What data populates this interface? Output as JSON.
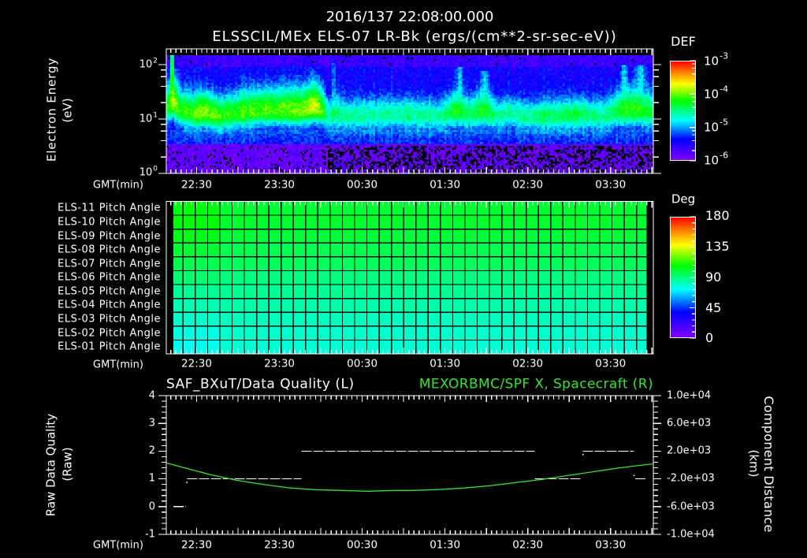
{
  "header": {
    "timestamp": "2016/137 22:08:00.000"
  },
  "colormap": [
    [
      0,
      "#7f00ff"
    ],
    [
      0.21,
      "#0000ff"
    ],
    [
      0.4,
      "#00ffff"
    ],
    [
      0.6,
      "#00ff00"
    ],
    [
      0.77,
      "#ffff00"
    ],
    [
      0.89,
      "#ff8000"
    ],
    [
      1,
      "#ff0000"
    ]
  ],
  "chart_data": [
    {
      "type": "heatmap",
      "title": "ELSSCIL/MEx ELS-07 LR-Bk  (ergs/(cm**2-sr-sec-eV))",
      "xlabel": "GMT(min)",
      "ylabel": "Electron Energy",
      "yunit": "(eV)",
      "x_range": [
        "22:08",
        "04:01"
      ],
      "x_ticks": [
        "22:30",
        "23:30",
        "00:30",
        "01:30",
        "02:30",
        "03:30"
      ],
      "yscale": "log",
      "ylim": [
        1,
        195
      ],
      "y_ticks": [
        {
          "base": "10",
          "exp": "2",
          "value": 100
        },
        {
          "base": "10",
          "exp": "1",
          "value": 10
        },
        {
          "base": "10",
          "exp": "0",
          "value": 1
        }
      ],
      "colorbar": {
        "label": "DEF",
        "log_range": [
          -6,
          -3
        ],
        "ticks": [
          {
            "base": "10",
            "exp": "-3"
          },
          {
            "base": "10",
            "exp": "-4"
          },
          {
            "base": "10",
            "exp": "-5"
          },
          {
            "base": "10",
            "exp": "-6"
          }
        ]
      },
      "spectrogram": {
        "energy_range_eV": [
          1,
          150
        ],
        "seed": 137,
        "background_log_def": {
          "top": -5.65,
          "upper": -5.45,
          "lower": -5.3,
          "bottom": -5.85
        },
        "sparse_after": "00:02",
        "black_fraction": [
          0.12,
          0.38
        ],
        "band_profile_columns": [
          "time",
          "peak_log_def",
          "center_log_energy",
          "upper_width"
        ],
        "band_profile": [
          [
            "22:08",
            -4.35,
            1.2,
            0.4
          ],
          [
            "22:13",
            -3.8,
            1.3,
            0.55
          ],
          [
            "22:18",
            -4.15,
            1.15,
            0.4
          ],
          [
            "22:27",
            -4.1,
            1.1,
            0.38
          ],
          [
            "22:36",
            -3.85,
            1.12,
            0.4
          ],
          [
            "22:47",
            -4.1,
            1.05,
            0.36
          ],
          [
            "22:59",
            -4.1,
            1.1,
            0.4
          ],
          [
            "23:16",
            -4.05,
            1.15,
            0.42
          ],
          [
            "23:33",
            -4.0,
            1.15,
            0.45
          ],
          [
            "23:47",
            -3.95,
            1.15,
            0.45
          ],
          [
            "23:56",
            -3.75,
            1.22,
            0.45
          ],
          [
            "00:02",
            -4.05,
            1.15,
            0.4
          ],
          [
            "00:06",
            -4.6,
            1.05,
            0.32
          ],
          [
            "00:10",
            -4.45,
            1.1,
            0.35
          ],
          [
            "00:19",
            -4.6,
            1.05,
            0.32
          ],
          [
            "00:53",
            -4.55,
            1.08,
            0.32
          ],
          [
            "01:27",
            -4.55,
            1.05,
            0.3
          ],
          [
            "01:39",
            -4.2,
            1.15,
            0.4
          ],
          [
            "01:47",
            -4.45,
            1.08,
            0.32
          ],
          [
            "01:59",
            -4.2,
            1.15,
            0.4
          ],
          [
            "02:09",
            -4.55,
            1.05,
            0.3
          ],
          [
            "02:16",
            -4.5,
            1.1,
            0.33
          ],
          [
            "02:25",
            -4.55,
            1.05,
            0.3
          ],
          [
            "02:47",
            -4.4,
            1.05,
            0.32
          ],
          [
            "03:07",
            -4.35,
            1.08,
            0.32
          ],
          [
            "03:25",
            -4.55,
            1.05,
            0.3
          ],
          [
            "03:39",
            -4.2,
            1.15,
            0.42
          ],
          [
            "03:50",
            -4.15,
            1.15,
            0.45
          ],
          [
            "04:01",
            -4.3,
            1.1,
            0.4
          ]
        ],
        "streaks_columns": [
          "from",
          "to",
          "log_def",
          "top_log_energy"
        ],
        "streaks": [
          [
            "22:11",
            "22:14",
            -3.8,
            2.17
          ],
          [
            "23:38",
            "23:41",
            -4.7,
            2.0
          ],
          [
            "00:07",
            "00:12",
            -4.75,
            2.1
          ],
          [
            "01:37",
            "01:44",
            -4.5,
            1.95
          ],
          [
            "01:55",
            "02:03",
            -4.5,
            1.9
          ],
          [
            "02:15",
            "02:18",
            -4.8,
            2.05
          ],
          [
            "03:37",
            "03:43",
            -4.45,
            2.0
          ],
          [
            "03:47",
            "03:57",
            -4.45,
            2.0
          ]
        ]
      }
    },
    {
      "type": "heatmap",
      "xlabel": "GMT(min)",
      "x_range": [
        "22:08",
        "04:01"
      ],
      "x_ticks": [
        "22:30",
        "23:30",
        "00:30",
        "01:30",
        "02:30",
        "03:30"
      ],
      "columns": 39,
      "start_columns": 4,
      "rows": [
        {
          "label": "ELS-11 Pitch Angle",
          "angle_deg": 101,
          "angle_deg_start": 106
        },
        {
          "label": "ELS-10 Pitch Angle",
          "angle_deg": 102,
          "angle_deg_start": 107
        },
        {
          "label": "ELS-09 Pitch Angle",
          "angle_deg": 100,
          "angle_deg_start": 105
        },
        {
          "label": "ELS-08 Pitch Angle",
          "angle_deg": 97,
          "angle_deg_start": 101
        },
        {
          "label": "ELS-07 Pitch Angle",
          "angle_deg": 95,
          "angle_deg_start": 97
        },
        {
          "label": "ELS-06 Pitch Angle",
          "angle_deg": 90,
          "angle_deg_start": 92
        },
        {
          "label": "ELS-05 Pitch Angle",
          "angle_deg": 87,
          "angle_deg_start": 87
        },
        {
          "label": "ELS-04 Pitch Angle",
          "angle_deg": 84,
          "angle_deg_start": 83
        },
        {
          "label": "ELS-03 Pitch Angle",
          "angle_deg": 81,
          "angle_deg_start": 79
        },
        {
          "label": "ELS-02 Pitch Angle",
          "angle_deg": 79,
          "angle_deg_start": 76
        },
        {
          "label": "ELS-01 Pitch Angle",
          "angle_deg": 78,
          "angle_deg_start": 74
        }
      ],
      "colorbar": {
        "label": "Deg",
        "range": [
          0,
          180
        ],
        "ticks": [
          "180",
          "135",
          "90",
          "45",
          "0"
        ]
      }
    },
    {
      "type": "line",
      "xlabel": "GMT(min)",
      "x_range": [
        "22:08",
        "04:01"
      ],
      "x_ticks": [
        "22:30",
        "23:30",
        "00:30",
        "01:30",
        "02:30",
        "03:30"
      ],
      "y_left": {
        "label": "Raw Data Quality",
        "unit": "(Raw)",
        "range": [
          -1,
          4
        ],
        "ticks": [
          "4",
          "3",
          "2",
          "1",
          "0",
          "-1"
        ]
      },
      "y_right": {
        "label": "Component Distance",
        "unit": "(km)",
        "range": [
          -10000,
          10000
        ],
        "ticks": [
          "1.0e+04",
          "6.0e+03",
          "2.0e+03",
          "-2.0e+03",
          "-6.0e+03",
          "-1.0e+04"
        ]
      },
      "series": [
        {
          "name": "SAF_BXuT/Data Quality (L)",
          "axis": "left",
          "color": "#ffffff",
          "segments": [
            {
              "value": 0,
              "from": "22:13",
              "to": "22:22"
            },
            {
              "value": 1,
              "from": "22:23",
              "to": "23:46"
            },
            {
              "value": 2,
              "from": "23:46",
              "to": "02:35"
            },
            {
              "value": 1,
              "from": "02:35",
              "to": "03:09"
            },
            {
              "value": 2,
              "from": "03:10",
              "to": "03:47"
            },
            {
              "value": 1,
              "from": "03:48",
              "to": "03:56"
            }
          ],
          "points": [
            {
              "t": "22:23",
              "value": 0.87
            },
            {
              "t": "03:10",
              "value": 1.88
            },
            {
              "t": "03:47",
              "value": 1.12
            }
          ]
        },
        {
          "name": "MEXORBMC/SPF X, Spacecraft (R)",
          "axis": "right",
          "color": "#2ee82e",
          "points": [
            [
              "22:08",
              300
            ],
            [
              "22:21",
              -400
            ],
            [
              "22:40",
              -1400
            ],
            [
              "22:59",
              -2200
            ],
            [
              "23:18",
              -2800
            ],
            [
              "23:37",
              -3300
            ],
            [
              "23:56",
              -3560
            ],
            [
              "00:15",
              -3670
            ],
            [
              "00:34",
              -3780
            ],
            [
              "00:53",
              -3670
            ],
            [
              "01:05",
              -3670
            ],
            [
              "01:23",
              -3560
            ],
            [
              "01:43",
              -3330
            ],
            [
              "02:02",
              -3000
            ],
            [
              "02:21",
              -2540
            ],
            [
              "02:40",
              -2090
            ],
            [
              "02:59",
              -1520
            ],
            [
              "03:18",
              -960
            ],
            [
              "03:37",
              -400
            ],
            [
              "03:56",
              60
            ],
            [
              "04:01",
              170
            ]
          ]
        }
      ]
    }
  ]
}
